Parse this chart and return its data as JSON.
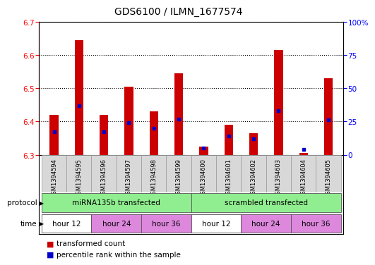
{
  "title": "GDS6100 / ILMN_1677574",
  "samples": [
    "GSM1394594",
    "GSM1394595",
    "GSM1394596",
    "GSM1394597",
    "GSM1394598",
    "GSM1394599",
    "GSM1394600",
    "GSM1394601",
    "GSM1394602",
    "GSM1394603",
    "GSM1394604",
    "GSM1394605"
  ],
  "red_values": [
    6.42,
    6.645,
    6.42,
    6.505,
    6.43,
    6.545,
    6.325,
    6.39,
    6.365,
    6.615,
    6.305,
    6.53
  ],
  "blue_values": [
    17,
    37,
    17,
    24,
    20,
    27,
    5,
    14,
    12,
    33,
    4,
    26
  ],
  "ymin": 6.3,
  "ymax": 6.7,
  "y_ticks": [
    6.3,
    6.4,
    6.5,
    6.6,
    6.7
  ],
  "right_yticks": [
    0,
    25,
    50,
    75,
    100
  ],
  "right_yticklabels": [
    "0",
    "25",
    "50",
    "75",
    "100%"
  ],
  "prot_spans": [
    {
      "label": "miRNA135b transfected",
      "start": 0,
      "end": 5,
      "color": "#90EE90"
    },
    {
      "label": "scrambled transfected",
      "start": 6,
      "end": 11,
      "color": "#90EE90"
    }
  ],
  "time_spans": [
    {
      "label": "hour 12",
      "start": 0,
      "end": 1,
      "color": "#ffffff"
    },
    {
      "label": "hour 24",
      "start": 2,
      "end": 3,
      "color": "#DD88DD"
    },
    {
      "label": "hour 36",
      "start": 4,
      "end": 5,
      "color": "#DD88DD"
    },
    {
      "label": "hour 12",
      "start": 6,
      "end": 7,
      "color": "#ffffff"
    },
    {
      "label": "hour 24",
      "start": 8,
      "end": 9,
      "color": "#DD88DD"
    },
    {
      "label": "hour 36",
      "start": 10,
      "end": 11,
      "color": "#DD88DD"
    }
  ],
  "bar_color": "#CC0000",
  "blue_color": "#0000CC",
  "bg_color": "#D8D8D8",
  "plot_bg": "#ffffff"
}
